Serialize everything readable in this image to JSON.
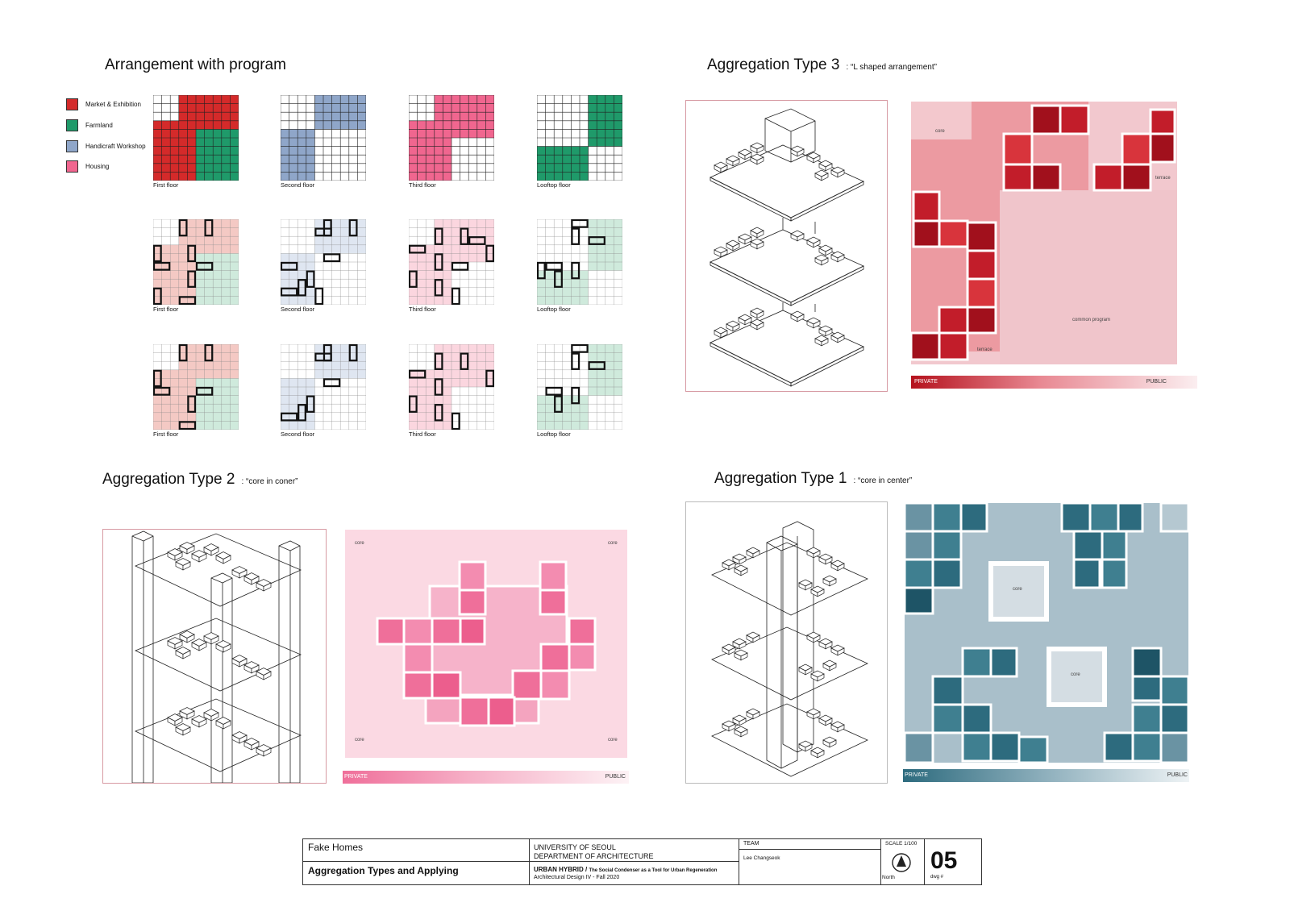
{
  "sections": {
    "arrangement": {
      "title": "Arrangement with program"
    },
    "type3": {
      "title": "Aggregation Type 3",
      "subtitle": ": “L shaped arrangement”"
    },
    "type2": {
      "title": "Aggregation Type 2",
      "subtitle": ": “core in coner”"
    },
    "type1": {
      "title": "Aggregation Type 1",
      "subtitle": ": “core in center”"
    }
  },
  "legend": [
    {
      "label": "Market & Exhibition",
      "color": "#d42a2a"
    },
    {
      "label": "Farmland",
      "color": "#1f9a6a"
    },
    {
      "label": "Handicraft Workshop",
      "color": "#8fa6c9"
    },
    {
      "label": "Housing",
      "color": "#f0668f"
    }
  ],
  "floor_labels": [
    "First floor",
    "Second floor",
    "Third floor",
    "Looftop floor"
  ],
  "plans": {
    "type3": {
      "core": "core",
      "terrace_a": "terrace",
      "terrace_b": "terrace",
      "common": "common program",
      "private": "PRIVATE",
      "public": "PUBLIC"
    },
    "type2": {
      "core": "core",
      "private": "PRIVATE",
      "public": "PUBLIC"
    },
    "type1": {
      "core": "core",
      "private": "PRIVATE",
      "public": "PUBLIC"
    }
  },
  "title_block": {
    "project": "Fake Homes",
    "sheet_title": "Aggregation Types and Applying",
    "university": "UNIVERSITY OF SEOUL",
    "department": "DEPARTMENT OF ARCHITECTURE",
    "course_name": "URBAN HYBRID /",
    "course_sub": "The Social Condenser as a Tool for Urban Regeneration",
    "course": "Architectural Design IV - Fall 2020",
    "team_label": "TEAM",
    "team": "Lee Changseok",
    "scale": "SCALE 1/100",
    "north": "North",
    "dwg_no": "05",
    "dwg_label": "dwg #"
  },
  "colors": {
    "market": "#d42a2a",
    "farmland": "#1f9a6a",
    "workshop": "#8fa6c9",
    "housing": "#f0668f",
    "type3_pink": "#ec8f96",
    "type3_red": "#c21d2a",
    "type2_pink": "#f8c3d3",
    "type2_hot": "#ef6f9a",
    "type1_blue": "#9eb6c2",
    "type1_dark": "#2d6b7e"
  }
}
